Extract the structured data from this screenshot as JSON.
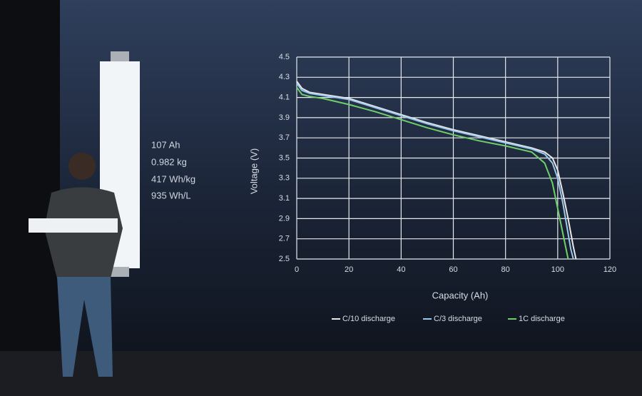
{
  "specs": [
    "107 Ah",
    "0.982 kg",
    "417 Wh/kg",
    "935 Wh/L"
  ],
  "chart_data": {
    "type": "line",
    "xlabel": "Capacity (Ah)",
    "ylabel": "Voltage (V)",
    "xlim": [
      0,
      120
    ],
    "xticks": [
      0,
      20,
      40,
      60,
      80,
      100,
      120
    ],
    "ylim": [
      2.5,
      4.5
    ],
    "yticks": [
      2.5,
      2.7,
      2.9,
      3.1,
      3.3,
      3.5,
      3.7,
      3.9,
      4.1,
      4.3,
      4.5
    ],
    "grid": true,
    "legend": "bottom",
    "series": [
      {
        "name": "C/10 discharge",
        "color": "#e8e8e8",
        "x": [
          0,
          2,
          5,
          10,
          20,
          30,
          40,
          50,
          60,
          70,
          80,
          90,
          95,
          98,
          100,
          102,
          104,
          106,
          107
        ],
        "values": [
          4.26,
          4.19,
          4.15,
          4.13,
          4.09,
          4.01,
          3.93,
          3.85,
          3.78,
          3.72,
          3.66,
          3.6,
          3.56,
          3.5,
          3.38,
          3.15,
          2.9,
          2.62,
          2.5
        ]
      },
      {
        "name": "C/3 discharge",
        "color": "#9cc8ec",
        "x": [
          0,
          2,
          5,
          10,
          20,
          30,
          40,
          50,
          60,
          70,
          80,
          90,
          95,
          98,
          100,
          102,
          104,
          105,
          106
        ],
        "values": [
          4.24,
          4.17,
          4.14,
          4.12,
          4.08,
          4.0,
          3.92,
          3.84,
          3.77,
          3.71,
          3.65,
          3.59,
          3.54,
          3.45,
          3.3,
          3.05,
          2.75,
          2.6,
          2.5
        ]
      },
      {
        "name": "1C discharge",
        "color": "#6fd06a",
        "x": [
          0,
          2,
          5,
          10,
          20,
          30,
          40,
          50,
          60,
          70,
          80,
          90,
          95,
          98,
          100,
          102,
          104
        ],
        "values": [
          4.2,
          4.13,
          4.11,
          4.09,
          4.03,
          3.96,
          3.88,
          3.8,
          3.73,
          3.67,
          3.62,
          3.56,
          3.45,
          3.25,
          3.0,
          2.75,
          2.5
        ]
      }
    ]
  }
}
